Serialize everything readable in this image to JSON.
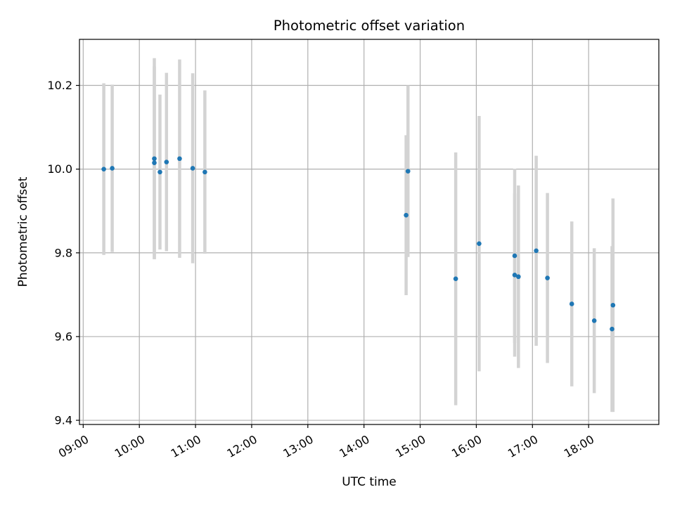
{
  "chart_data": {
    "type": "scatter",
    "title": "Photometric offset variation",
    "xlabel": "UTC time",
    "ylabel": "Photometric offset",
    "x_ticks": [
      "09:00",
      "10:00",
      "11:00",
      "12:00",
      "13:00",
      "14:00",
      "15:00",
      "16:00",
      "17:00",
      "18:00"
    ],
    "y_ticks": [
      "9.4",
      "9.6",
      "9.8",
      "10.0",
      "10.2"
    ],
    "xlim": [
      "08:56",
      "19:15"
    ],
    "ylim": [
      9.39,
      10.31
    ],
    "grid": true,
    "marker_color": "#1f77b4",
    "errorbar_color": "#d3d3d3",
    "series": [
      {
        "points": [
          {
            "x": "09:22",
            "y": 10.0,
            "err": 0.205
          },
          {
            "x": "09:31",
            "y": 10.002,
            "err": 0.2
          },
          {
            "x": "10:16",
            "y": 10.025,
            "err": 0.24
          },
          {
            "x": "10:16",
            "y": 10.015,
            "err": 0.23
          },
          {
            "x": "10:22",
            "y": 9.993,
            "err": 0.185
          },
          {
            "x": "10:29",
            "y": 10.017,
            "err": 0.213
          },
          {
            "x": "10:43",
            "y": 10.025,
            "err": 0.237
          },
          {
            "x": "10:57",
            "y": 10.002,
            "err": 0.227
          },
          {
            "x": "11:10",
            "y": 9.993,
            "err": 0.195
          },
          {
            "x": "14:45",
            "y": 9.89,
            "err": 0.191
          },
          {
            "x": "14:47",
            "y": 9.995,
            "err": 0.205
          },
          {
            "x": "15:38",
            "y": 9.738,
            "err": 0.302
          },
          {
            "x": "16:03",
            "y": 9.822,
            "err": 0.305
          },
          {
            "x": "16:41",
            "y": 9.793,
            "err": 0.208
          },
          {
            "x": "16:41",
            "y": 9.747,
            "err": 0.195
          },
          {
            "x": "16:45",
            "y": 9.743,
            "err": 0.218
          },
          {
            "x": "17:04",
            "y": 9.805,
            "err": 0.227
          },
          {
            "x": "17:16",
            "y": 9.74,
            "err": 0.203
          },
          {
            "x": "17:42",
            "y": 9.678,
            "err": 0.197
          },
          {
            "x": "18:06",
            "y": 9.638,
            "err": 0.173
          },
          {
            "x": "18:25",
            "y": 9.618,
            "err": 0.198
          },
          {
            "x": "18:26",
            "y": 9.675,
            "err": 0.255
          }
        ]
      }
    ]
  }
}
